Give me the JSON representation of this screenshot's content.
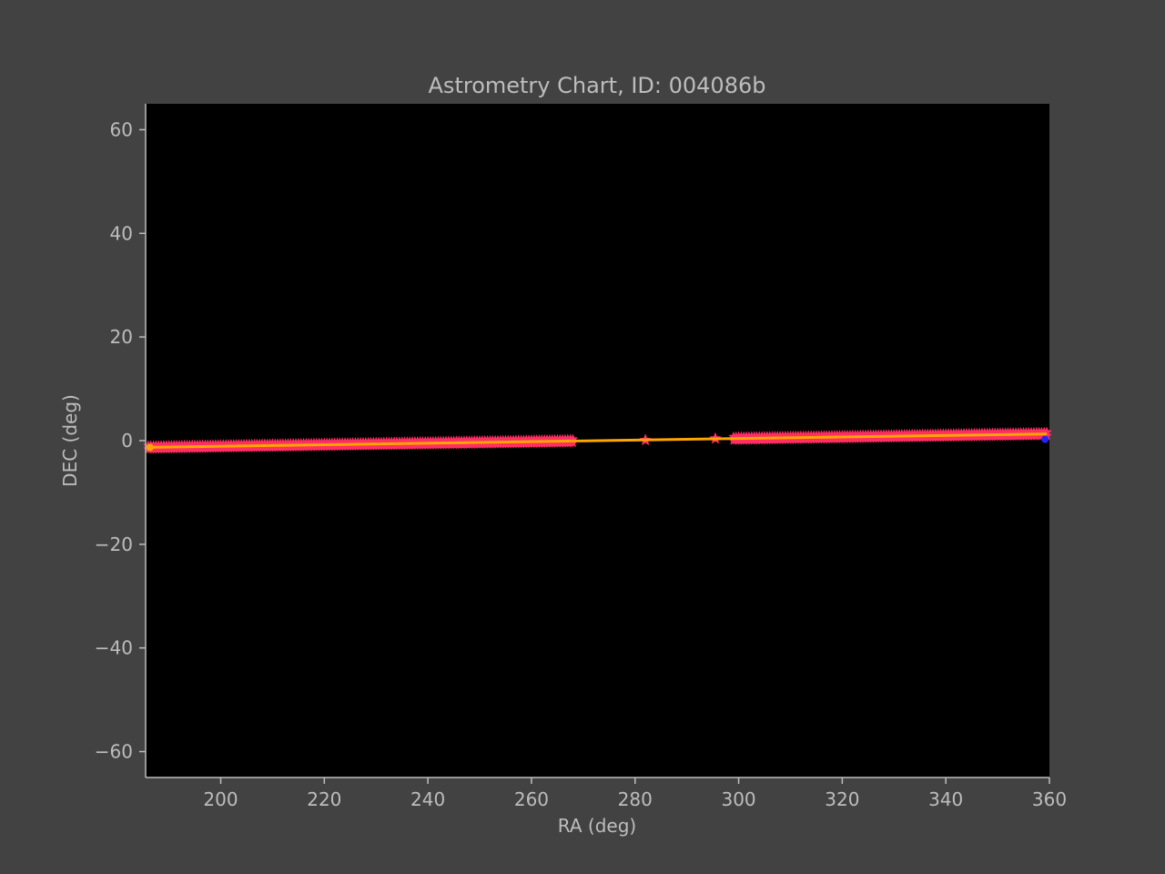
{
  "chart_data": {
    "type": "scatter",
    "title": "Astrometry Chart, ID: 004086b",
    "xlabel": "RA (deg)",
    "ylabel": "DEC (deg)",
    "xlim": [
      185.5,
      360
    ],
    "ylim": [
      -65,
      65
    ],
    "xticks": [
      200,
      220,
      240,
      260,
      280,
      300,
      320,
      340,
      360
    ],
    "yticks": [
      -60,
      -40,
      -20,
      0,
      20,
      40,
      60
    ],
    "grid": false,
    "legend": "none",
    "colors": {
      "figure_bg": "#424242",
      "plot_bg": "#000000",
      "points": "#ff2e63",
      "fit_line": "#ffa500",
      "end_point": "#2222ff",
      "text": "#bdbdbd"
    },
    "series": [
      {
        "kind": "points",
        "ranges": [
          [
            186,
            268,
            0.5
          ],
          [
            299,
            359.5,
            0.5
          ]
        ],
        "isolated_points": [
          [
            282,
            0.1
          ],
          [
            295.5,
            0.4
          ]
        ],
        "marker": "star"
      },
      {
        "kind": "line",
        "x": [
          186,
          359.5
        ],
        "y": [
          -1.3,
          1.3
        ]
      },
      {
        "kind": "marker",
        "x": [
          359.5
        ],
        "y": [
          1.3
        ]
      }
    ]
  }
}
